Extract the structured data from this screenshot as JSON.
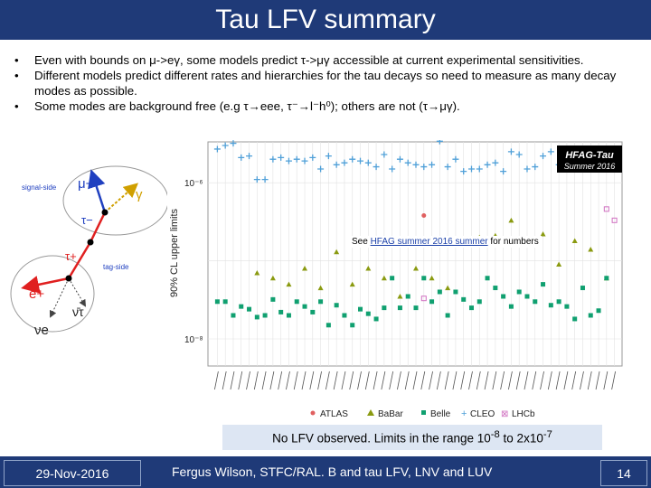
{
  "slide": {
    "title": "Tau LFV summary",
    "bullets": [
      "Even with bounds on μ->eγ, some models predict τ->μγ accessible at current experimental sensitivities.",
      "Different models predict different rates and hierarchies for the tau decays so need to measure as many decay modes as possible.",
      "Some modes are background free (e.g τ→eee, τ⁻→l⁻h⁰); others are not (τ→μγ)."
    ],
    "conclusion_prefix": "No LFV observed. Limits in the range 10",
    "conclusion_exp1": "-8",
    "conclusion_mid": " to 2x10",
    "conclusion_exp2": "-7"
  },
  "schematic": {
    "signal_side": "signal-side",
    "tag_side": "tag-side",
    "labels": [
      "μ−",
      "γ",
      "τ−",
      "τ+",
      "e+",
      "ν̄τ",
      "νe"
    ]
  },
  "chart_data": {
    "type": "scatter",
    "ylabel": "90% CL upper limits",
    "ytick_labels": [
      "10⁻⁶",
      "10⁻⁸"
    ],
    "yscale": "log",
    "ylim": [
      5e-09,
      3e-06
    ],
    "badge_line1": "HFAG-Tau",
    "badge_line2": "Summer 2016",
    "note_prefix": "See ",
    "note_link": "HFAG summer 2016 summer",
    "note_suffix": " for numbers",
    "legend": [
      "ATLAS",
      "BaBar",
      "Belle",
      "CLEO",
      "LHCb"
    ],
    "series_colors": {
      "ATLAS": "#e06060",
      "BaBar": "#8a9a10",
      "Belle": "#10a070",
      "CLEO": "#50a0d8",
      "LHCb": "#d070c0"
    },
    "series": [
      {
        "name": "CLEO",
        "x": [
          1,
          2,
          3,
          4,
          5,
          6,
          7,
          8,
          9,
          10,
          11,
          12,
          13,
          14,
          15,
          16,
          17,
          18,
          19,
          20,
          21,
          22,
          23,
          24,
          25,
          26,
          27,
          28,
          29,
          30,
          31,
          32,
          33,
          34,
          35,
          36,
          37,
          38,
          39,
          40,
          41,
          42,
          43,
          44,
          45
        ],
        "y": [
          2.7e-06,
          3e-06,
          3.2e-06,
          2.1e-06,
          2.2e-06,
          1.1e-06,
          1.1e-06,
          2e-06,
          2.1e-06,
          1.9e-06,
          2e-06,
          1.9e-06,
          2.1e-06,
          1.5e-06,
          2.2e-06,
          1.7e-06,
          1.8e-06,
          2e-06,
          1.9e-06,
          1.8e-06,
          1.6e-06,
          2.3e-06,
          1.5e-06,
          2e-06,
          1.8e-06,
          1.7e-06,
          1.6e-06,
          1.7e-06,
          3.4e-06,
          1.6e-06,
          2e-06,
          1.4e-06,
          1.5e-06,
          1.5e-06,
          1.7e-06,
          1.8e-06,
          1.4e-06,
          2.5e-06,
          2.3e-06,
          1.5e-06,
          1.6e-06,
          2.2e-06,
          2.5e-06,
          1.7e-06,
          1.5e-06
        ]
      },
      {
        "name": "BaBar",
        "x": [
          6,
          8,
          10,
          12,
          14,
          16,
          18,
          20,
          22,
          24,
          26,
          28,
          30,
          32,
          34,
          36,
          38,
          40,
          42,
          44,
          46,
          48,
          50
        ],
        "y": [
          7e-08,
          6e-08,
          5e-08,
          8e-08,
          4.5e-08,
          1.3e-07,
          5e-08,
          8e-08,
          6e-08,
          3.5e-08,
          8e-08,
          6e-08,
          4.5e-08,
          1.9e-07,
          2e-07,
          2.1e-07,
          3.3e-07,
          1.7e-07,
          2.2e-07,
          9e-08,
          1.8e-07,
          1.4e-07,
          6e-08
        ]
      },
      {
        "name": "Belle",
        "x": [
          1,
          2,
          3,
          4,
          5,
          6,
          7,
          8,
          9,
          10,
          11,
          12,
          13,
          14,
          15,
          16,
          17,
          18,
          19,
          20,
          21,
          22,
          23,
          24,
          25,
          26,
          27,
          28,
          29,
          30,
          31,
          32,
          33,
          34,
          35,
          36,
          37,
          38,
          39,
          40,
          41,
          42,
          43,
          44,
          45,
          46,
          47,
          48,
          49,
          50
        ],
        "y": [
          3e-08,
          3e-08,
          2e-08,
          2.6e-08,
          2.4e-08,
          1.9e-08,
          2e-08,
          3.2e-08,
          2.2e-08,
          2e-08,
          3e-08,
          2.6e-08,
          2.2e-08,
          3e-08,
          1.5e-08,
          2.7e-08,
          2e-08,
          1.5e-08,
          2.4e-08,
          2.1e-08,
          1.8e-08,
          2.5e-08,
          6e-08,
          2.5e-08,
          3.5e-08,
          2.5e-08,
          6e-08,
          3e-08,
          4e-08,
          2e-08,
          4e-08,
          3.2e-08,
          2.5e-08,
          3e-08,
          6e-08,
          4.5e-08,
          3.5e-08,
          2.6e-08,
          4e-08,
          3.5e-08,
          3e-08,
          5e-08,
          2.7e-08,
          3e-08,
          2.6e-08,
          1.8e-08,
          4.5e-08,
          2e-08,
          2.3e-08,
          6e-08
        ]
      },
      {
        "name": "ATLAS",
        "x": [
          27
        ],
        "y": [
          3.8e-07
        ]
      },
      {
        "name": "LHCb",
        "x": [
          27,
          50,
          51
        ],
        "y": [
          3.3e-08,
          4.6e-07,
          3.3e-07
        ]
      }
    ]
  },
  "footer": {
    "date": "29-Nov-2016",
    "author": "Fergus Wilson, STFC/RAL. B and tau LFV, LNV and LUV",
    "page": "14"
  }
}
